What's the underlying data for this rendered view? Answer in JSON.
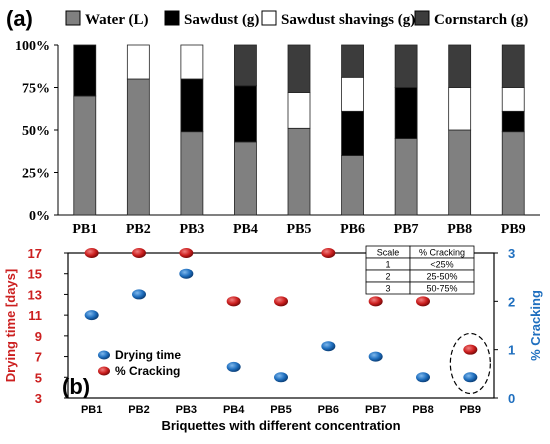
{
  "chart_data": [
    {
      "type": "bar",
      "stacked": true,
      "panel_label": "(a)",
      "categories": [
        "PB1",
        "PB2",
        "PB3",
        "PB4",
        "PB5",
        "PB6",
        "PB7",
        "PB8",
        "PB9"
      ],
      "series": [
        {
          "name": "Water (L)",
          "color": "#808080",
          "values": [
            70,
            80,
            49,
            43,
            51,
            35,
            45,
            50,
            49
          ]
        },
        {
          "name": "Sawdust (g)",
          "color": "#000000",
          "values": [
            30,
            0,
            31,
            33,
            0,
            26,
            30,
            0,
            12
          ]
        },
        {
          "name": "Sawdust shavings (g)",
          "color": "#ffffff",
          "values": [
            0,
            20,
            20,
            0,
            21,
            20,
            0,
            25,
            14
          ]
        },
        {
          "name": "Cornstarch (g)",
          "color": "#3c3c3c",
          "values": [
            0,
            0,
            0,
            24,
            28,
            19,
            25,
            25,
            25
          ]
        }
      ],
      "yticks": [
        "0%",
        "25%",
        "50%",
        "75%",
        "100%"
      ],
      "ylim": [
        0,
        100
      ],
      "grid": false,
      "legend_position": "top"
    },
    {
      "type": "scatter",
      "panel_label": "(b)",
      "categories": [
        "PB1",
        "PB2",
        "PB3",
        "PB4",
        "PB5",
        "PB6",
        "PB7",
        "PB8",
        "PB9"
      ],
      "xlabel": "Briquettes with different concentration",
      "ylabel_left": "Drying time [days]",
      "ylabel_right": "% Cracking",
      "yticks_left": [
        "3",
        "5",
        "7",
        "9",
        "11",
        "13",
        "15",
        "17"
      ],
      "ylim_left": [
        3,
        17
      ],
      "yticks_right": [
        "0",
        "1",
        "2",
        "3"
      ],
      "ylim_right": [
        0,
        3
      ],
      "series": [
        {
          "name": "Drying time",
          "color": "#1f6fbf",
          "axis": "left",
          "values": [
            11,
            13,
            15,
            6,
            5,
            8,
            7,
            5,
            5
          ]
        },
        {
          "name": "% Cracking",
          "color": "#cc1f1f",
          "axis": "right",
          "values": [
            3,
            3,
            3,
            2,
            2,
            3,
            2,
            2,
            1
          ]
        }
      ],
      "legend_position": "bottom-left",
      "highlighted_category": "PB9",
      "table": {
        "headers": [
          "Scale",
          "% Cracking"
        ],
        "rows": [
          [
            "1",
            "<25%"
          ],
          [
            "2",
            "25-50%"
          ],
          [
            "3",
            "50-75%"
          ]
        ]
      }
    }
  ]
}
